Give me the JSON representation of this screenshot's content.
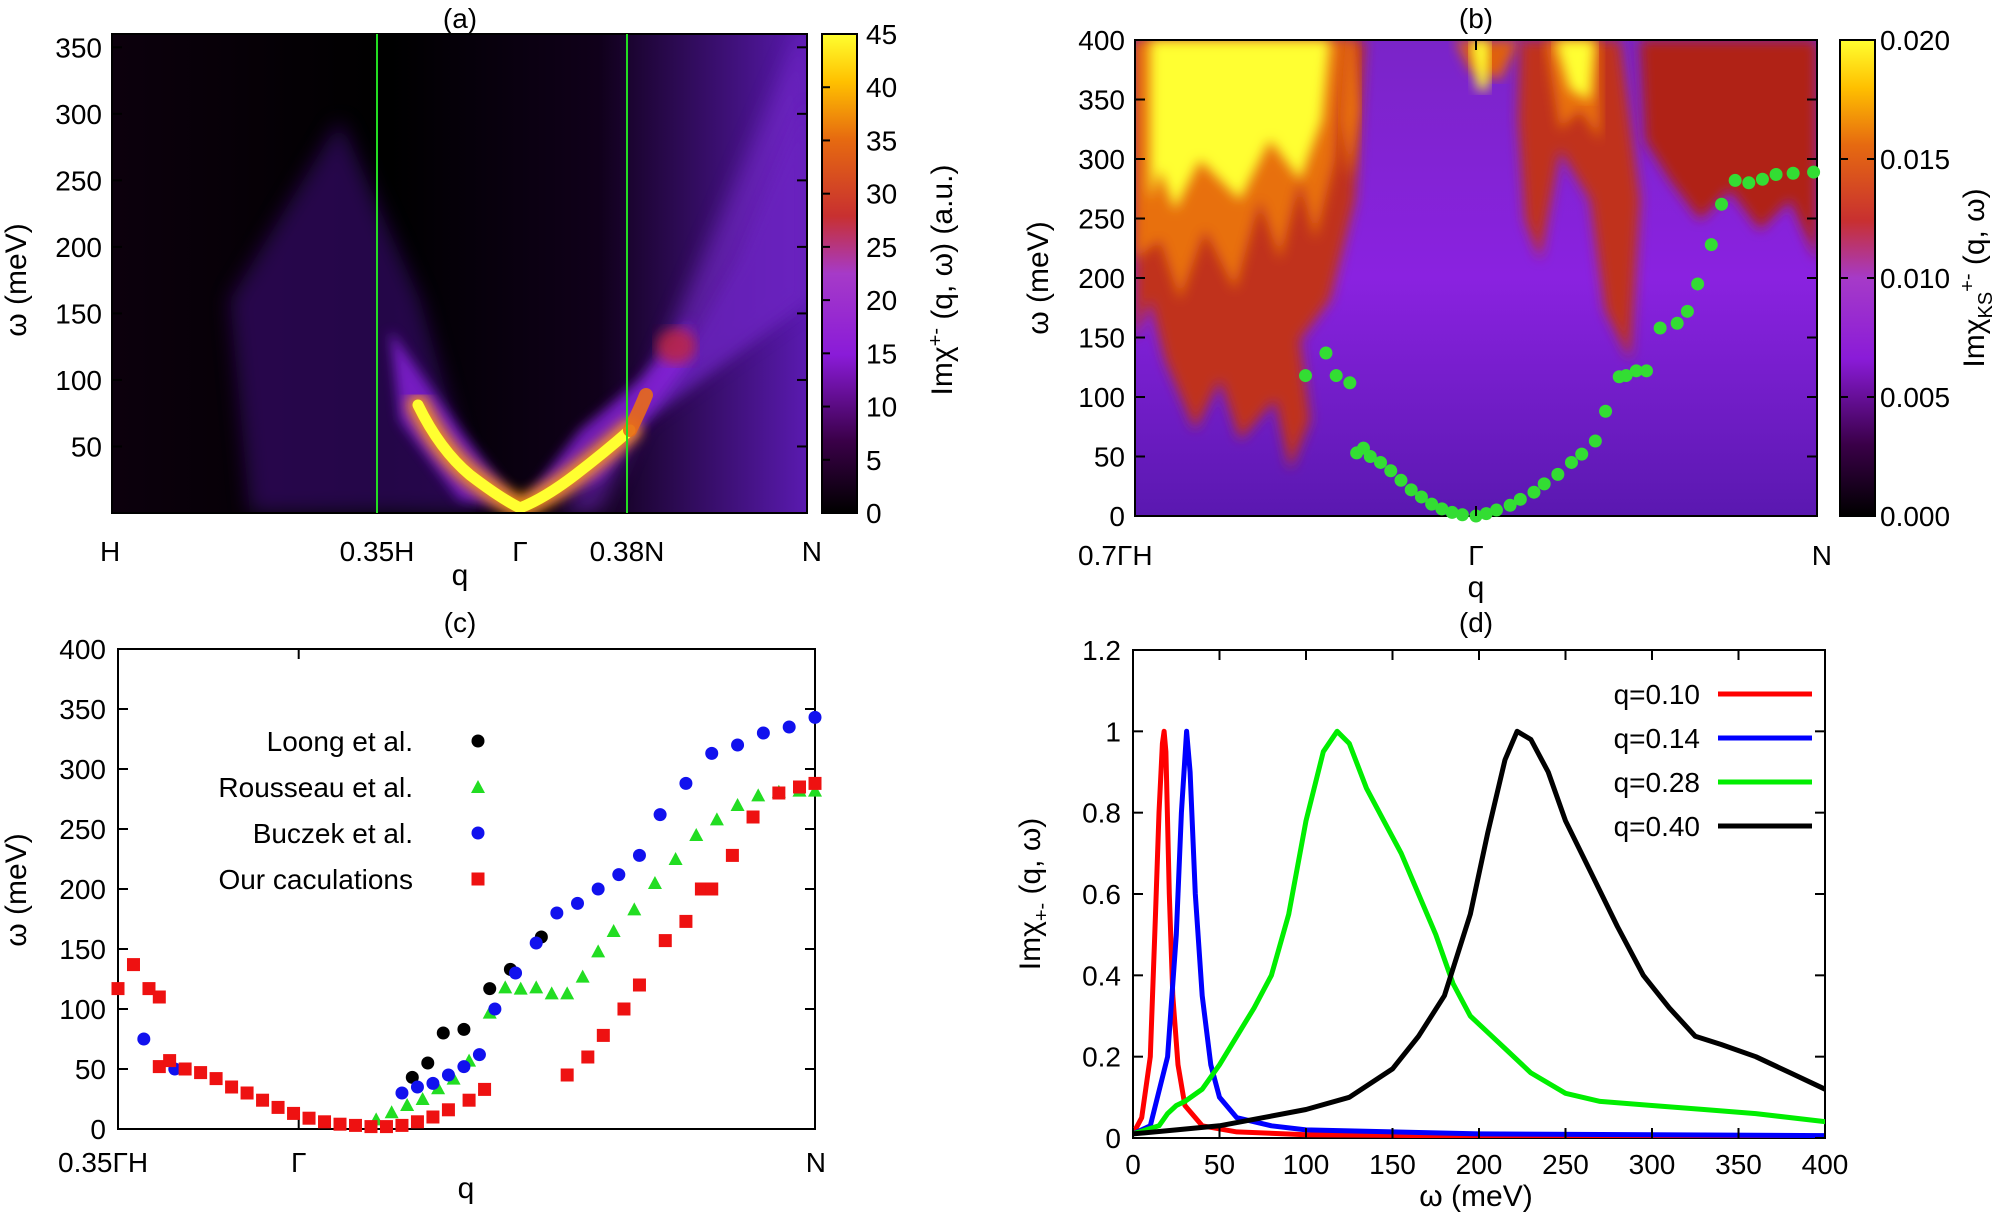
{
  "figure": {
    "panels": [
      {
        "id": "a",
        "title": "(a)",
        "ylabel": "ω (meV)",
        "xlabel": "q",
        "yticks": [
          "50",
          "100",
          "150",
          "200",
          "250",
          "300",
          "350"
        ],
        "xticks": [
          "H",
          "0.35H",
          "Γ",
          "0.38N",
          "N"
        ],
        "colorbar": {
          "label": "Imχ+- (q, ω) (a.u.)",
          "label_main": "Imχ",
          "label_sup": "+-",
          "label_rest": " (q, ω) (a.u.)",
          "ticks": [
            "0",
            "5",
            "10",
            "15",
            "20",
            "25",
            "30",
            "35",
            "40",
            "45"
          ]
        }
      },
      {
        "id": "b",
        "title": "(b)",
        "ylabel": "ω (meV)",
        "xlabel": "q",
        "yticks": [
          "0",
          "50",
          "100",
          "150",
          "200",
          "250",
          "300",
          "350",
          "400"
        ],
        "xticks": [
          "0.7ΓH",
          "Γ",
          "N"
        ],
        "colorbar": {
          "label": "ImχKS+- (q, ω)",
          "label_main": "Imχ",
          "label_sub": "KS",
          "label_sup": "+-",
          "label_rest": " (q, ω)",
          "ticks": [
            "0.000",
            "0.005",
            "0.010",
            "0.015",
            "0.020"
          ]
        }
      },
      {
        "id": "c",
        "title": "(c)",
        "ylabel": "ω (meV)",
        "xlabel": "q",
        "yticks": [
          "0",
          "50",
          "100",
          "150",
          "200",
          "250",
          "300",
          "350",
          "400"
        ],
        "xticks": [
          "0.35ΓH",
          "Γ",
          "N"
        ]
      },
      {
        "id": "d",
        "title": "(d)",
        "ylabel": "Imχ+- (q, ω)",
        "ylabel_main": "Imχ",
        "ylabel_sub": "+-",
        "ylabel_rest": " (q, ω)",
        "xlabel": "ω (meV)",
        "yticks": [
          "0",
          "0.2",
          "0.4",
          "0.6",
          "0.8",
          "1",
          "1.2"
        ],
        "xticks": [
          "0",
          "50",
          "100",
          "150",
          "200",
          "250",
          "300",
          "350",
          "400"
        ]
      }
    ]
  },
  "chart_data": [
    {
      "panel": "a",
      "type": "heatmap",
      "title": "(a)",
      "xlabel": "q",
      "ylabel": "ω (meV)",
      "ylim": [
        0,
        360
      ],
      "clim": [
        0,
        45
      ],
      "x_tick_labels": [
        "H",
        "0.35H",
        "Γ",
        "0.38N",
        "N"
      ],
      "markers": [
        "0.35H",
        "0.38N"
      ],
      "colorbar_label": "Imχ+- (q, ω) (a.u.)"
    },
    {
      "panel": "b",
      "type": "heatmap",
      "title": "(b)",
      "xlabel": "q",
      "ylabel": "ω (meV)",
      "xlim": [
        -1,
        1
      ],
      "ylim": [
        0,
        400
      ],
      "clim": [
        0,
        0.02
      ],
      "x_tick_labels": [
        "0.7ΓH",
        "Γ",
        "N"
      ],
      "colorbar_label": "ImχKS+- (q, ω)",
      "overlay_points": {
        "x": [
          -0.5,
          -0.44,
          -0.41,
          -0.37,
          -0.35,
          -0.33,
          -0.31,
          -0.28,
          -0.25,
          -0.22,
          -0.19,
          -0.16,
          -0.13,
          -0.1,
          -0.07,
          -0.04,
          0.0,
          0.03,
          0.06,
          0.1,
          0.13,
          0.17,
          0.2,
          0.24,
          0.28,
          0.31,
          0.35,
          0.38,
          0.42,
          0.44,
          0.47,
          0.5,
          0.54,
          0.59,
          0.62,
          0.65,
          0.69,
          0.72,
          0.76,
          0.8,
          0.84,
          0.88,
          0.93,
          0.99
        ],
        "y": [
          118,
          137,
          118,
          112,
          53,
          57,
          50,
          45,
          38,
          30,
          22,
          16,
          10,
          6,
          3,
          1,
          0,
          2,
          5,
          9,
          14,
          20,
          27,
          35,
          45,
          52,
          63,
          88,
          117,
          118,
          122,
          122,
          158,
          162,
          172,
          195,
          228,
          262,
          282,
          280,
          283,
          287,
          288,
          289
        ]
      }
    },
    {
      "panel": "c",
      "type": "scatter",
      "title": "(c)",
      "xlabel": "q",
      "ylabel": "ω (meV)",
      "xlim": [
        -0.35,
        1.0
      ],
      "ylim": [
        0,
        400
      ],
      "x_tick_labels": [
        "0.35ΓH",
        "Γ",
        "N"
      ],
      "series": [
        {
          "name": "Loong et al.",
          "marker": "circle",
          "color": "#000000",
          "x": [
            0.22,
            0.25,
            0.28,
            0.32,
            0.37,
            0.41,
            0.47
          ],
          "y": [
            43,
            55,
            80,
            83,
            117,
            133,
            160
          ]
        },
        {
          "name": "Rousseau et al.",
          "marker": "triangle",
          "color": "#22dd22",
          "x": [
            0.15,
            0.18,
            0.21,
            0.24,
            0.27,
            0.3,
            0.33,
            0.37,
            0.4,
            0.43,
            0.46,
            0.49,
            0.52,
            0.55,
            0.58,
            0.61,
            0.65,
            0.69,
            0.73,
            0.77,
            0.81,
            0.85,
            0.89,
            0.93,
            0.97,
            1.0
          ],
          "y": [
            8,
            14,
            20,
            25,
            34,
            42,
            57,
            97,
            118,
            117,
            118,
            113,
            113,
            127,
            148,
            165,
            183,
            205,
            225,
            245,
            258,
            270,
            278,
            281,
            282,
            282
          ]
        },
        {
          "name": "Buczek et al.",
          "marker": "circle",
          "color": "#1111ee",
          "x": [
            -0.3,
            -0.24,
            0.2,
            0.23,
            0.26,
            0.29,
            0.32,
            0.35,
            0.38,
            0.42,
            0.46,
            0.5,
            0.54,
            0.58,
            0.62,
            0.66,
            0.7,
            0.75,
            0.8,
            0.85,
            0.9,
            0.95,
            1.0
          ],
          "y": [
            75,
            50,
            30,
            35,
            38,
            45,
            52,
            62,
            100,
            130,
            155,
            180,
            188,
            200,
            212,
            228,
            262,
            288,
            313,
            320,
            330,
            335,
            343
          ]
        },
        {
          "name": "Our caculations",
          "marker": "square",
          "color": "#ee1111",
          "x": [
            -0.35,
            -0.32,
            -0.29,
            -0.27,
            -0.27,
            -0.25,
            -0.22,
            -0.19,
            -0.16,
            -0.13,
            -0.1,
            -0.07,
            -0.04,
            -0.01,
            0.02,
            0.05,
            0.08,
            0.11,
            0.14,
            0.17,
            0.2,
            0.23,
            0.26,
            0.29,
            0.33,
            0.36,
            0.52,
            0.56,
            0.59,
            0.63,
            0.66,
            0.71,
            0.75,
            0.78,
            0.8,
            0.84,
            0.88,
            0.93,
            0.97,
            1.0
          ],
          "y": [
            117,
            137,
            117,
            110,
            52,
            57,
            50,
            47,
            42,
            35,
            30,
            24,
            18,
            13,
            9,
            6,
            4,
            3,
            2,
            2,
            3,
            6,
            10,
            16,
            24,
            33,
            45,
            60,
            78,
            100,
            120,
            157,
            173,
            200,
            200,
            228,
            260,
            280,
            285,
            288
          ]
        }
      ]
    },
    {
      "panel": "d",
      "type": "line",
      "title": "(d)",
      "xlabel": "ω (meV)",
      "ylabel": "Imχ+- (q, ω)",
      "xlim": [
        0,
        400
      ],
      "ylim": [
        0,
        1.2
      ],
      "legend_position": "top-right",
      "series": [
        {
          "name": "q=0.10",
          "color": "#ff0000",
          "x": [
            0,
            5,
            10,
            13,
            15,
            17,
            18,
            19,
            21,
            23,
            26,
            30,
            40,
            60,
            100,
            200,
            400
          ],
          "y": [
            0.01,
            0.05,
            0.2,
            0.55,
            0.8,
            0.97,
            1.0,
            0.95,
            0.6,
            0.35,
            0.18,
            0.08,
            0.03,
            0.015,
            0.008,
            0.005,
            0.003
          ]
        },
        {
          "name": "q=0.14",
          "color": "#0000ff",
          "x": [
            0,
            10,
            20,
            25,
            28,
            31,
            33,
            36,
            40,
            45,
            50,
            60,
            80,
            100,
            150,
            200,
            300,
            400
          ],
          "y": [
            0.01,
            0.03,
            0.2,
            0.5,
            0.8,
            1.0,
            0.9,
            0.6,
            0.35,
            0.18,
            0.1,
            0.05,
            0.03,
            0.02,
            0.015,
            0.01,
            0.008,
            0.006
          ]
        },
        {
          "name": "q=0.28",
          "color": "#00ee00",
          "x": [
            0,
            15,
            20,
            25,
            30,
            40,
            50,
            60,
            70,
            80,
            90,
            100,
            110,
            118,
            125,
            135,
            145,
            155,
            165,
            175,
            185,
            195,
            205,
            215,
            230,
            250,
            270,
            300,
            330,
            360,
            400
          ],
          "y": [
            0.01,
            0.03,
            0.06,
            0.08,
            0.09,
            0.12,
            0.18,
            0.25,
            0.32,
            0.4,
            0.55,
            0.78,
            0.95,
            1.0,
            0.97,
            0.86,
            0.78,
            0.7,
            0.6,
            0.5,
            0.38,
            0.3,
            0.26,
            0.22,
            0.16,
            0.11,
            0.09,
            0.08,
            0.07,
            0.06,
            0.04
          ]
        },
        {
          "name": "q=0.40",
          "color": "#000000",
          "x": [
            0,
            25,
            50,
            75,
            100,
            125,
            150,
            165,
            180,
            195,
            205,
            215,
            222,
            230,
            240,
            250,
            265,
            280,
            295,
            310,
            325,
            340,
            360,
            380,
            400
          ],
          "y": [
            0.01,
            0.02,
            0.03,
            0.05,
            0.07,
            0.1,
            0.17,
            0.25,
            0.35,
            0.55,
            0.75,
            0.93,
            1.0,
            0.98,
            0.9,
            0.78,
            0.65,
            0.52,
            0.4,
            0.32,
            0.25,
            0.23,
            0.2,
            0.16,
            0.12
          ]
        }
      ]
    }
  ]
}
